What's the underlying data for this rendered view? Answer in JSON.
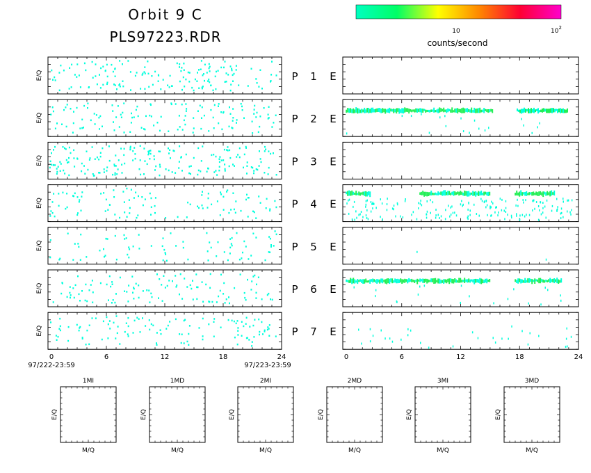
{
  "header": {
    "title_line1": "Orbit 9 C",
    "title_line2": "PLS97223.RDR"
  },
  "colorbar": {
    "label": "counts/second",
    "tick_10": "10",
    "tick_100_base": "10",
    "tick_100_exp": "2",
    "colors": [
      "#00ffc0",
      "#00ff66",
      "#ffff00",
      "#ff8800",
      "#ff0033",
      "#ff00cc"
    ]
  },
  "chart_data": {
    "type": "heatmap",
    "ylabel": "E/Q",
    "x_ticks": [
      "0",
      "6",
      "12",
      "18",
      "24"
    ],
    "xlim": [
      0,
      24
    ],
    "left_start_label": "97/222-23:59",
    "left_end_label": "97/223-23:59",
    "low_color": "#00ffdd",
    "high_color": "#22ee55",
    "panels": [
      {
        "label_p": "P",
        "num": "1",
        "label_e": "E",
        "left_density": 0.6,
        "right_bands": [],
        "right_sparse": 0
      },
      {
        "label_p": "P",
        "num": "2",
        "label_e": "E",
        "left_density": 0.5,
        "right_bands": [
          [
            0.3,
            15.3,
            0.28
          ],
          [
            17.7,
            22.8,
            0.28
          ]
        ],
        "right_sparse": 0.05
      },
      {
        "label_p": "P",
        "num": "3",
        "label_e": "E",
        "left_density": 0.75,
        "right_bands": [],
        "right_sparse": 0
      },
      {
        "label_p": "P",
        "num": "4",
        "label_e": "E",
        "left_density": 0.4,
        "right_bands": [
          [
            0.3,
            2.8,
            0.22
          ],
          [
            7.8,
            15.0,
            0.22
          ],
          [
            17.5,
            21.5,
            0.22
          ]
        ],
        "right_sparse": 0.45
      },
      {
        "label_p": "P",
        "num": "5",
        "label_e": "E",
        "left_density": 0.3,
        "right_bands": [],
        "right_sparse": 0.005
      },
      {
        "label_p": "P",
        "num": "6",
        "label_e": "E",
        "left_density": 0.45,
        "right_bands": [
          [
            0.3,
            15.0,
            0.28
          ],
          [
            17.5,
            22.2,
            0.28
          ]
        ],
        "right_sparse": 0.05
      },
      {
        "label_p": "P",
        "num": "7",
        "label_e": "E",
        "left_density": 0.45,
        "right_bands": [],
        "right_sparse": 0.08
      }
    ],
    "mq_panels": [
      {
        "title": "1MI",
        "xlabel": "M/Q",
        "ylabel": "E/Q"
      },
      {
        "title": "1MD",
        "xlabel": "M/Q",
        "ylabel": "E/Q"
      },
      {
        "title": "2MI",
        "xlabel": "M/Q",
        "ylabel": "E/Q"
      },
      {
        "title": "2MD",
        "xlabel": "M/Q",
        "ylabel": "E/Q"
      },
      {
        "title": "3MI",
        "xlabel": "M/Q",
        "ylabel": "E/Q"
      },
      {
        "title": "3MD",
        "xlabel": "M/Q",
        "ylabel": "E/Q"
      }
    ]
  }
}
